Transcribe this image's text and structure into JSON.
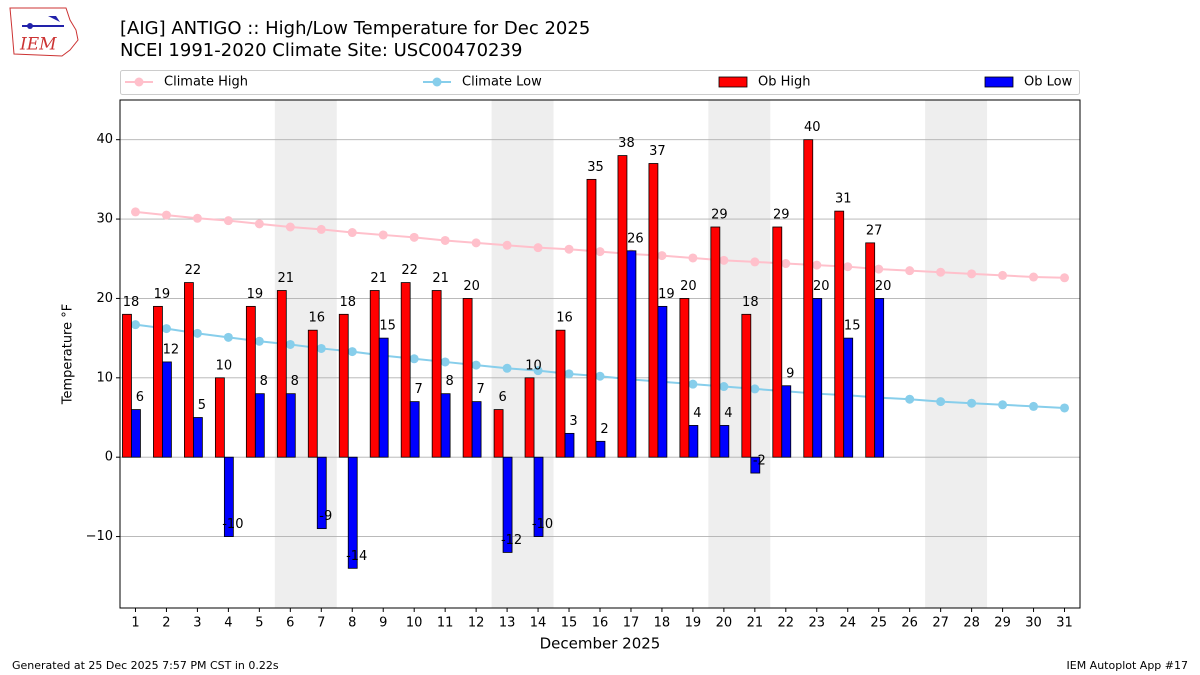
{
  "logo_text": "IEM",
  "chart_data": {
    "type": "bar",
    "title": "[AIG] ANTIGO :: High/Low Temperature for Dec 2025",
    "subtitle": "NCEI 1991-2020 Climate Site: USC00470239",
    "x_label": "December 2025",
    "y_label": "Temperature °F",
    "footer_left": "Generated at 25 Dec 2025 7:57 PM CST in 0.22s",
    "footer_right": "IEM Autoplot App #17",
    "x": [
      1,
      2,
      3,
      4,
      5,
      6,
      7,
      8,
      9,
      10,
      11,
      12,
      13,
      14,
      15,
      16,
      17,
      18,
      19,
      20,
      21,
      22,
      23,
      24,
      25,
      26,
      27,
      28,
      29,
      30,
      31
    ],
    "xlim": [
      0.5,
      31.5
    ],
    "xticks": [
      1,
      2,
      3,
      4,
      5,
      6,
      7,
      8,
      9,
      10,
      11,
      12,
      13,
      14,
      15,
      16,
      17,
      18,
      19,
      20,
      21,
      22,
      23,
      24,
      25,
      26,
      27,
      28,
      29,
      30,
      31
    ],
    "ylim": [
      -19,
      45
    ],
    "yticks": [
      {
        "value": -10,
        "label": "−10"
      },
      0,
      10,
      20,
      30,
      40
    ],
    "grid": true,
    "weekend_shading": [
      [
        5.5,
        7.5
      ],
      [
        12.5,
        14.5
      ],
      [
        19.5,
        21.5
      ],
      [
        26.5,
        28.5
      ]
    ],
    "series": [
      {
        "name": "Climate High",
        "type": "line",
        "color": "#ffc0cb",
        "values": [
          30.9,
          30.5,
          30.1,
          29.8,
          29.4,
          29.0,
          28.7,
          28.3,
          28.0,
          27.7,
          27.3,
          27.0,
          26.7,
          26.4,
          26.2,
          25.9,
          25.6,
          25.4,
          25.1,
          24.8,
          24.6,
          24.4,
          24.2,
          24.0,
          23.7,
          23.5,
          23.3,
          23.1,
          22.9,
          22.7,
          22.6
        ]
      },
      {
        "name": "Climate Low",
        "type": "line",
        "color": "#87ceeb",
        "values": [
          16.7,
          16.2,
          15.6,
          15.1,
          14.6,
          14.2,
          13.7,
          13.3,
          12.8,
          12.4,
          12.0,
          11.6,
          11.2,
          10.9,
          10.5,
          10.2,
          9.8,
          9.5,
          9.2,
          8.9,
          8.6,
          8.3,
          8.0,
          7.8,
          7.5,
          7.3,
          7.0,
          6.8,
          6.6,
          6.4,
          6.2
        ]
      },
      {
        "name": "Ob High",
        "type": "bar",
        "color": "#ff0000",
        "values": [
          18,
          19,
          22,
          10,
          19,
          21,
          16,
          18,
          21,
          22,
          21,
          20,
          6,
          10,
          16,
          35,
          38,
          37,
          20,
          29,
          18,
          29,
          40,
          31,
          27,
          null,
          null,
          null,
          null,
          null,
          null
        ]
      },
      {
        "name": "Ob Low",
        "type": "bar",
        "color": "#0000ff",
        "values": [
          6,
          12,
          5,
          -10,
          8,
          8,
          -9,
          -14,
          15,
          7,
          8,
          7,
          -12,
          -10,
          3,
          2,
          26,
          19,
          4,
          4,
          -2,
          9,
          20,
          15,
          20,
          null,
          null,
          null,
          null,
          null,
          null
        ]
      }
    ],
    "legend": "top"
  }
}
